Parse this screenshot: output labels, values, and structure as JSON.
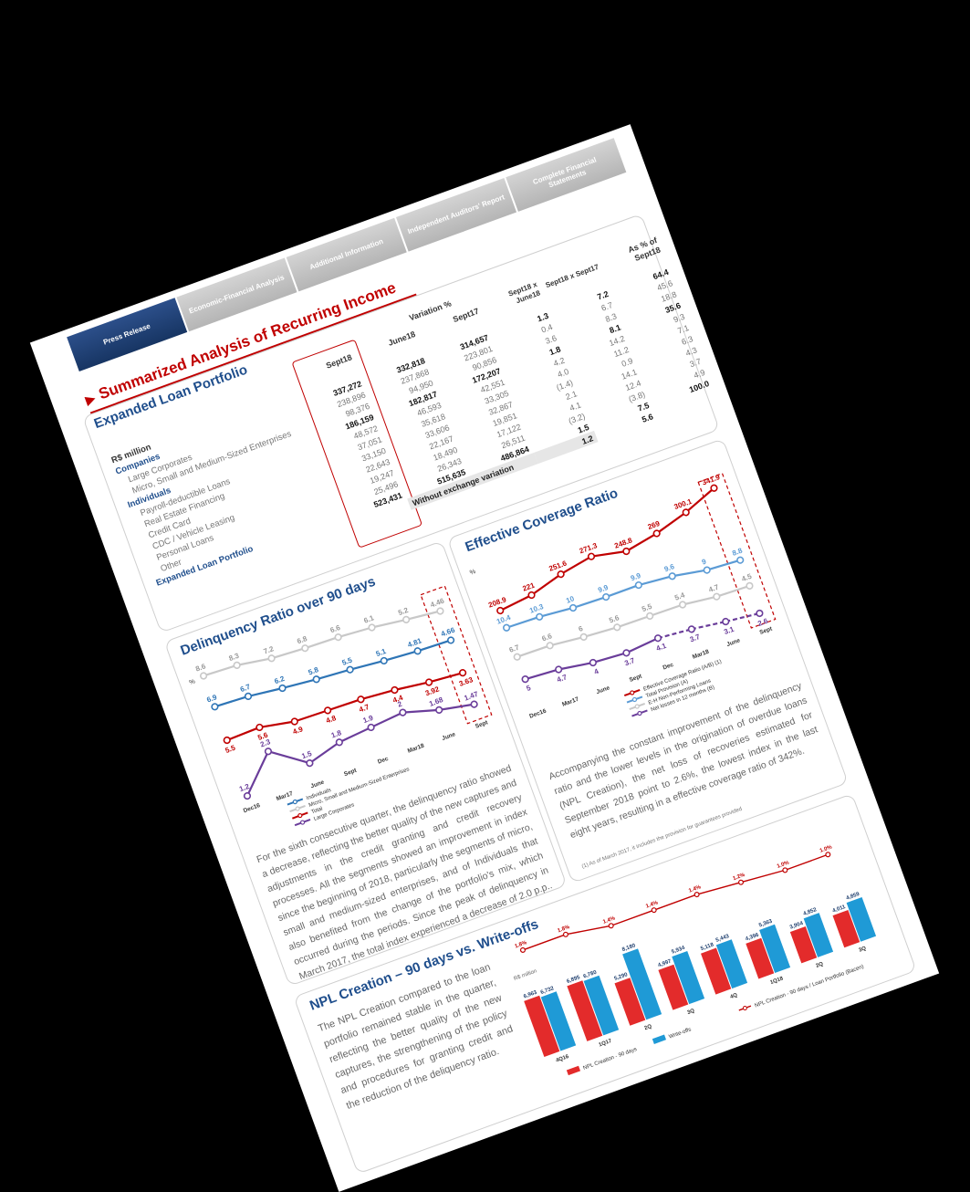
{
  "nav": {
    "tabs": [
      {
        "label": "Press Release",
        "active": true
      },
      {
        "label": "Economic-Financial Analysis",
        "active": false
      },
      {
        "label": "Additional Information",
        "active": false
      },
      {
        "label": "Independent Auditors' Report",
        "active": false
      },
      {
        "label": "Complete Financial Statements",
        "active": false
      }
    ]
  },
  "title": "Summarized Analysis of Recurring Income",
  "loan": {
    "heading": "Expanded Loan Portfolio",
    "unit_label": "R$ million",
    "col_sept18": "Sept18",
    "col_june18": "June18",
    "col_sept17": "Sept17",
    "variation_label": "Variation %",
    "col_var1": "Sept18 x June18",
    "col_var2": "Sept18 x Sept17",
    "col_share": "As % of Sept18",
    "rows": [
      {
        "label": "Companies",
        "kind": "grp",
        "sept18": "337,272",
        "june18": "332,818",
        "sept17": "314,657",
        "v1": "1.3",
        "v2": "7.2",
        "share": "64.4"
      },
      {
        "label": "Large Corporates",
        "kind": "sub",
        "sept18": "238,896",
        "june18": "237,868",
        "sept17": "223,801",
        "v1": "0.4",
        "v2": "6.7",
        "share": "45.6"
      },
      {
        "label": "Micro, Small and Medium-Sized Enterprises",
        "kind": "sub",
        "sept18": "98,376",
        "june18": "94,950",
        "sept17": "90,856",
        "v1": "3.6",
        "v2": "8.3",
        "share": "18.8"
      },
      {
        "label": "Individuals",
        "kind": "grp",
        "sept18": "186,159",
        "june18": "182,817",
        "sept17": "172,207",
        "v1": "1.8",
        "v2": "8.1",
        "share": "35.6"
      },
      {
        "label": "Payroll-deductible Loans",
        "kind": "sub",
        "sept18": "48,572",
        "june18": "46,593",
        "sept17": "42,551",
        "v1": "4.2",
        "v2": "14.2",
        "share": "9.3"
      },
      {
        "label": "Real Estate Financing",
        "kind": "sub",
        "sept18": "37,051",
        "june18": "35,618",
        "sept17": "33,305",
        "v1": "4.0",
        "v2": "11.2",
        "share": "7.1"
      },
      {
        "label": "Credit Card",
        "kind": "sub",
        "sept18": "33,150",
        "june18": "33,606",
        "sept17": "32,867",
        "v1": "(1.4)",
        "v2": "0.9",
        "share": "6.3"
      },
      {
        "label": "CDC / Vehicle Leasing",
        "kind": "sub",
        "sept18": "22,643",
        "june18": "22,167",
        "sept17": "19,851",
        "v1": "2.1",
        "v2": "14.1",
        "share": "4.3"
      },
      {
        "label": "Personal Loans",
        "kind": "sub",
        "sept18": "19,247",
        "june18": "18,490",
        "sept17": "17,122",
        "v1": "4.1",
        "v2": "12.4",
        "share": "3.7"
      },
      {
        "label": "Other",
        "kind": "sub",
        "sept18": "25,496",
        "june18": "26,343",
        "sept17": "26,511",
        "v1": "(3.2)",
        "v2": "(3.8)",
        "share": "4.9"
      },
      {
        "label": "Expanded Loan Portfolio",
        "kind": "grp",
        "sept18": "523,431",
        "june18": "515,635",
        "sept17": "486,864",
        "v1": "1.5",
        "v2": "7.5",
        "share": "100.0"
      }
    ],
    "without_fx": {
      "label": "Without exchange variation",
      "v1": "1.2",
      "v2": "5.6"
    }
  },
  "delinquency": {
    "heading": "Delinquency Ratio over 90 days",
    "paragraph": "For the sixth consecutive quarter, the delinquency ratio showed a decrease, reflecting the better quality of the new captures and adjustments in the credit granting and credit recovery processes. All the segments showed an improvement in index since the beginning of 2018, particularly the segments of micro, small and medium-sized enterprises, and of Individuals that also benefited from the change of the portfolio's mix, which occurred during the periods. Since the peak of delinquency in March 2017, the total index experienced a decrease of 2.0 p.p.."
  },
  "coverage": {
    "heading": "Effective Coverage Ratio",
    "paragraph": "Accompanying the constant improvement of the delinquency ratio and the lower levels in the origination of overdue loans (NPL Creation), the net loss of recoveries estimated for September 2018 point to 2.6%, the lowest index in the last eight years, resulting in a effective coverage ratio of 342%.",
    "footnote": "(1) As of March 2017, it includes the provision for guarantees provided"
  },
  "npl": {
    "heading": "NPL Creation – 90 days vs. Write-offs",
    "paragraph": "The NPL Creation compared to the loan portfolio remained stable in the quarter, reflecting the better quality of the new captures, the strengthening of the policy and procedures for granting credit and the reduction of the deliquency ratio."
  },
  "chart_data": [
    {
      "type": "line",
      "title": "Delinquency Ratio over 90 days",
      "ylabel": "%",
      "x": [
        "Dec16",
        "Mar17",
        "June",
        "Sept",
        "Dec",
        "Mar18",
        "June",
        "Sept"
      ],
      "series": [
        {
          "name": "Individuals",
          "color": "#2e75b6",
          "values": [
            6.9,
            6.7,
            6.2,
            5.8,
            5.5,
            5.1,
            4.81,
            4.66
          ]
        },
        {
          "name": "Micro, Small and Medium-Sized Enterprises",
          "color": "#c8c8c8",
          "values": [
            8.6,
            8.3,
            7.2,
            6.8,
            6.6,
            6.1,
            5.2,
            4.46
          ]
        },
        {
          "name": "Total",
          "color": "#c00000",
          "values": [
            5.5,
            5.6,
            4.9,
            4.8,
            4.7,
            4.4,
            3.92,
            3.63
          ]
        },
        {
          "name": "Large Corporates",
          "color": "#6a3d9a",
          "values": [
            1.2,
            2.3,
            1.5,
            1.8,
            1.9,
            2.0,
            1.68,
            1.47
          ]
        }
      ]
    },
    {
      "type": "line",
      "title": "Effective Coverage Ratio",
      "ylabel": "%",
      "x": [
        "Dec16",
        "Mar17",
        "June",
        "Sept",
        "Dec",
        "Mar18",
        "June",
        "Sept"
      ],
      "series": [
        {
          "name": "Effective Coverage Ratio (A/B) (1)",
          "color": "#c00000",
          "values": [
            208.9,
            221.0,
            251.6,
            271.3,
            248.8,
            269.0,
            300.1,
            341.9
          ]
        },
        {
          "name": "Total Provision (A)",
          "color": "#5b9bd5",
          "values": [
            10.4,
            10.3,
            10.0,
            9.9,
            9.9,
            9.6,
            9.0,
            8.8
          ]
        },
        {
          "name": "E-H Non-Performing Loans",
          "color": "#c8c8c8",
          "values": [
            6.7,
            6.6,
            6.0,
            5.6,
            5.5,
            5.4,
            4.7,
            4.5
          ]
        },
        {
          "name": "Net losses in 12 months (B)",
          "color": "#6a3d9a",
          "values": [
            5.0,
            4.7,
            4.0,
            3.7,
            4.1,
            3.7,
            3.1,
            2.6
          ]
        }
      ]
    },
    {
      "type": "bar",
      "title": "NPL Creation – 90 days vs. Write-offs",
      "ylabel": "R$ million",
      "categories": [
        "4Q16",
        "1Q17",
        "2Q",
        "3Q",
        "4Q",
        "1Q18",
        "2Q",
        "3Q"
      ],
      "series": [
        {
          "name": "NPL Creation - 90 days",
          "color": "#e32b2b",
          "values": [
            6963,
            6895,
            5290,
            4997,
            5118,
            4396,
            3904,
            4011
          ]
        },
        {
          "name": "Write-offs",
          "color": "#1f9ad6",
          "values": [
            6732,
            6780,
            8180,
            5934,
            5443,
            5363,
            4852,
            4859
          ]
        }
      ],
      "line_series": {
        "name": "NPL Creation - 90 days / Loan Portfolio (Bacen)",
        "color": "#c00000",
        "values": [
          "1.8%",
          "1.8%",
          "1.4%",
          "1.4%",
          "1.4%",
          "1.2%",
          "1.0%",
          "1.0%"
        ]
      }
    }
  ]
}
